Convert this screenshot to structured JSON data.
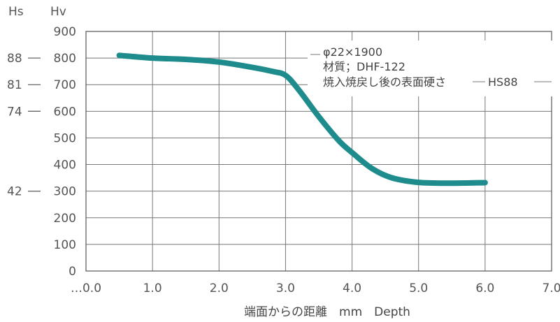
{
  "chart_data": {
    "type": "line",
    "title": "",
    "ylabel_hv": "Hv",
    "ylabel_hs": "Hs",
    "xlabel": "端面からの距離　mm　Depth",
    "xlim": [
      0,
      7
    ],
    "ylim": [
      0,
      900
    ],
    "x_ticks": [
      "…0.0",
      "1.0",
      "2.0",
      "3.0",
      "4.0",
      "5.0",
      "6.0",
      "7.0"
    ],
    "y_ticks": [
      "900",
      "800",
      "700",
      "600",
      "500",
      "400",
      "300",
      "200",
      "100",
      "0"
    ],
    "hs_ticks": [
      {
        "label": "88",
        "hv": 800
      },
      {
        "label": "81",
        "hv": 700
      },
      {
        "label": "74",
        "hv": 600
      },
      {
        "label": "42",
        "hv": 300
      }
    ],
    "annotation": {
      "line1": "φ22×1900",
      "line2": "材質；DHF-122",
      "line3": "焼入焼戻し後の表面硬さ",
      "hs_label": "HS88"
    },
    "series": [
      {
        "color": "#1e8c8c",
        "x": [
          0.5,
          1.0,
          1.5,
          2.0,
          2.5,
          2.8,
          3.0,
          3.2,
          3.5,
          3.8,
          4.0,
          4.3,
          4.6,
          5.0,
          5.5,
          6.0
        ],
        "y": [
          810,
          800,
          795,
          785,
          765,
          750,
          735,
          680,
          580,
          490,
          445,
          385,
          350,
          333,
          330,
          332
        ]
      }
    ]
  }
}
